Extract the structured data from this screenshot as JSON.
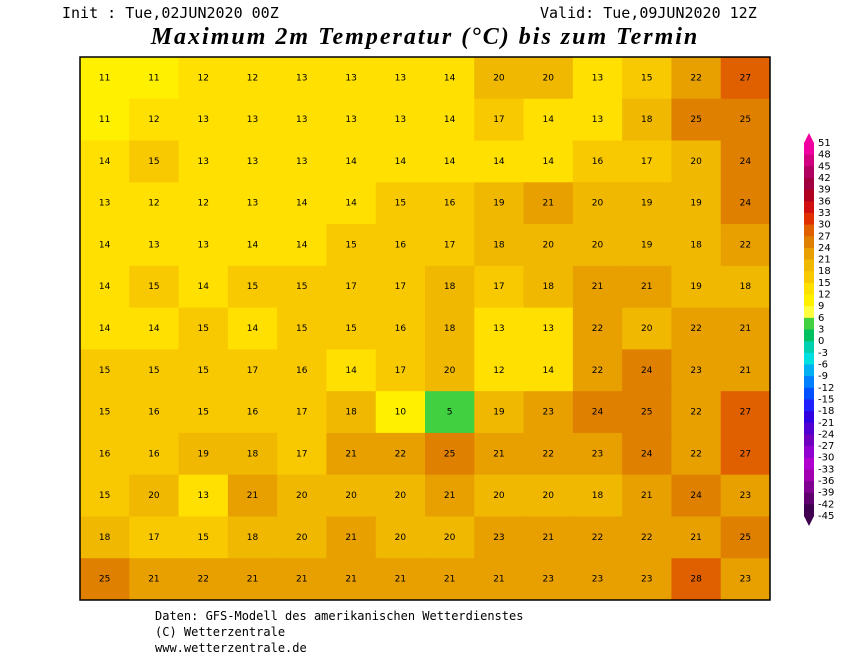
{
  "header": {
    "init": "Init : Tue,02JUN2020 00Z",
    "valid": "Valid: Tue,09JUN2020 12Z",
    "title": "Maximum 2m Temperatur (°C) bis zum Termin"
  },
  "map": {
    "rows": [
      [
        11,
        11,
        12,
        12,
        13,
        13,
        13,
        14,
        20,
        20,
        13,
        15,
        22,
        27
      ],
      [
        11,
        12,
        13,
        13,
        13,
        13,
        13,
        14,
        17,
        14,
        13,
        18,
        25,
        25
      ],
      [
        14,
        15,
        13,
        13,
        13,
        14,
        14,
        14,
        14,
        14,
        16,
        17,
        20,
        24
      ],
      [
        13,
        12,
        12,
        13,
        14,
        14,
        15,
        16,
        19,
        21,
        20,
        19,
        19,
        24
      ],
      [
        14,
        13,
        13,
        14,
        14,
        15,
        16,
        17,
        18,
        20,
        20,
        19,
        18,
        22
      ],
      [
        14,
        15,
        14,
        15,
        15,
        17,
        17,
        18,
        17,
        18,
        21,
        21,
        19,
        18
      ],
      [
        14,
        14,
        15,
        14,
        15,
        15,
        16,
        18,
        13,
        13,
        22,
        20,
        22,
        21
      ],
      [
        15,
        15,
        15,
        17,
        16,
        14,
        17,
        20,
        12,
        14,
        22,
        24,
        23,
        21
      ],
      [
        15,
        16,
        15,
        16,
        17,
        18,
        10,
        5,
        19,
        23,
        24,
        25,
        22,
        27
      ],
      [
        16,
        16,
        19,
        18,
        17,
        21,
        22,
        25,
        21,
        22,
        23,
        24,
        22,
        27
      ],
      [
        15,
        20,
        13,
        21,
        20,
        20,
        20,
        21,
        20,
        20,
        18,
        21,
        24,
        23
      ],
      [
        18,
        17,
        15,
        18,
        20,
        21,
        20,
        20,
        23,
        21,
        22,
        22,
        21,
        25
      ],
      [
        25,
        21,
        22,
        21,
        21,
        21,
        21,
        21,
        21,
        23,
        23,
        23,
        28,
        23
      ]
    ]
  },
  "colorbar": {
    "labels": [
      51,
      48,
      45,
      42,
      39,
      36,
      33,
      30,
      27,
      24,
      21,
      18,
      15,
      12,
      9,
      6,
      3,
      0,
      -3,
      -6,
      -9,
      -12,
      -15,
      -18,
      -21,
      -24,
      -27,
      -30,
      -33,
      -36,
      -39,
      -42,
      -45
    ],
    "colors": [
      "#f000a0",
      "#d00080",
      "#b00060",
      "#a00040",
      "#b00020",
      "#d01010",
      "#e03000",
      "#e06000",
      "#e08000",
      "#e8a000",
      "#f0b800",
      "#f8c800",
      "#ffe000",
      "#fff000",
      "#ffff40",
      "#40d040",
      "#00c060",
      "#00d0b0",
      "#00e0e0",
      "#00b0f0",
      "#0080ff",
      "#0050ff",
      "#2020ff",
      "#3000e0",
      "#5000d0",
      "#7000c0",
      "#9000d0",
      "#b000d0",
      "#a000b0",
      "#800090",
      "#600070",
      "#400050"
    ]
  },
  "footer": [
    "Daten: GFS-Modell des amerikanischen Wetterdienstes",
    "(C) Wetterzentrale",
    "www.wetterzentrale.de"
  ]
}
